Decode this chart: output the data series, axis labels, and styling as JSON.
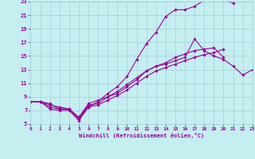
{
  "xlabel": "Windchill (Refroidissement éolien,°C)",
  "xlim": [
    0,
    23
  ],
  "ylim": [
    5,
    23
  ],
  "xticks": [
    0,
    1,
    2,
    3,
    4,
    5,
    6,
    7,
    8,
    9,
    10,
    11,
    12,
    13,
    14,
    15,
    16,
    17,
    18,
    19,
    20,
    21,
    22,
    23
  ],
  "yticks": [
    5,
    7,
    9,
    11,
    13,
    15,
    17,
    19,
    21,
    23
  ],
  "bg_color": "#c5eef0",
  "grid_color": "#a0d0d8",
  "line_color": "#990099",
  "lines": [
    {
      "x": [
        0,
        1,
        2,
        3,
        4,
        5,
        6,
        7,
        8,
        9,
        10,
        11,
        12,
        13,
        14,
        15,
        16,
        17,
        18,
        19,
        20,
        21,
        22,
        23
      ],
      "y": [
        8.3,
        8.3,
        7.2,
        7.0,
        7.0,
        5.5,
        7.5,
        8.3,
        9.5,
        10.5,
        12.0,
        14.5,
        16.8,
        18.5,
        20.8,
        21.8,
        21.8,
        22.3,
        23.2,
        23.2,
        23.2,
        22.8,
        null,
        null
      ]
    },
    {
      "x": [
        0,
        1,
        2,
        3,
        4,
        5,
        6,
        7,
        8,
        9,
        10,
        11,
        12,
        13,
        14,
        15,
        16,
        17,
        18,
        19,
        20,
        21,
        22,
        23
      ],
      "y": [
        8.3,
        8.3,
        8.0,
        7.2,
        7.2,
        6.0,
        8.0,
        8.5,
        9.0,
        9.5,
        10.5,
        11.5,
        12.8,
        13.5,
        13.8,
        14.3,
        14.8,
        17.5,
        15.8,
        15.0,
        14.5,
        13.5,
        12.2,
        13.0
      ]
    },
    {
      "x": [
        0,
        1,
        2,
        3,
        4,
        5,
        6,
        7,
        8,
        9,
        10,
        11,
        12,
        13,
        14,
        15,
        16,
        17,
        18,
        19,
        20,
        21,
        22,
        23
      ],
      "y": [
        8.3,
        8.3,
        7.5,
        7.2,
        7.2,
        5.8,
        7.8,
        8.0,
        9.0,
        9.8,
        10.8,
        11.8,
        12.8,
        13.5,
        14.0,
        14.8,
        15.3,
        15.8,
        16.0,
        16.2,
        14.8,
        null,
        null,
        null
      ]
    },
    {
      "x": [
        0,
        1,
        2,
        3,
        4,
        5,
        6,
        7,
        8,
        9,
        10,
        11,
        12,
        13,
        14,
        15,
        16,
        17,
        18,
        19,
        20,
        21,
        22,
        23
      ],
      "y": [
        8.3,
        8.3,
        7.8,
        7.5,
        7.2,
        5.8,
        7.5,
        7.8,
        8.5,
        9.2,
        10.0,
        11.0,
        12.0,
        12.8,
        13.3,
        13.8,
        14.3,
        14.8,
        15.2,
        15.5,
        16.0,
        null,
        null,
        null
      ]
    }
  ]
}
